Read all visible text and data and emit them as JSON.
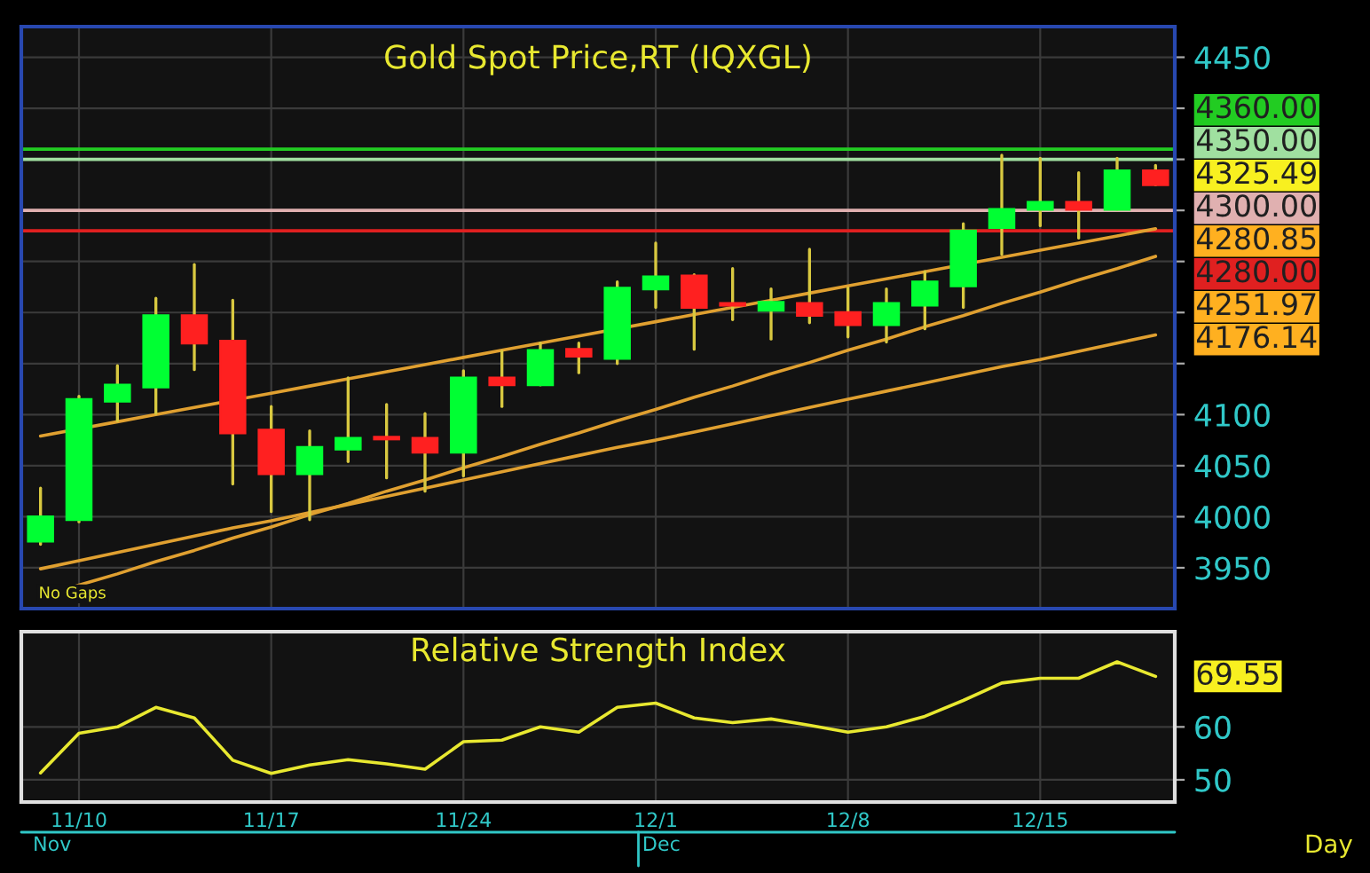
{
  "chart_data": [
    {
      "type": "candlestick",
      "title": "Gold Spot Price,RT (IQXGL)",
      "categories": [
        null,
        null,
        null,
        null,
        null,
        null,
        null,
        null,
        null,
        null,
        null,
        null,
        null,
        null,
        null,
        null,
        null,
        null,
        null,
        null,
        null,
        null,
        null,
        null,
        null,
        null,
        null,
        null,
        null,
        null
      ],
      "ohlc": [
        [
          3976,
          4028,
          3973,
          4000
        ],
        [
          3997,
          4118,
          3995,
          4115
        ],
        [
          4113,
          4148,
          4094,
          4129
        ],
        [
          4127,
          4214,
          4101,
          4197
        ],
        [
          4197,
          4247,
          4144,
          4170
        ],
        [
          4172,
          4212,
          4032,
          4082
        ],
        [
          4085,
          4108,
          4005,
          4042
        ],
        [
          4042,
          4084,
          3997,
          4068
        ],
        [
          4066,
          4136,
          4054,
          4077
        ],
        [
          4078,
          4110,
          4038,
          4076
        ],
        [
          4077,
          4101,
          4025,
          4063
        ],
        [
          4063,
          4143,
          4040,
          4136
        ],
        [
          4136,
          4162,
          4108,
          4129
        ],
        [
          4129,
          4170,
          4129,
          4163
        ],
        [
          4164,
          4170,
          4141,
          4157
        ],
        [
          4155,
          4230,
          4150,
          4224
        ],
        [
          4223,
          4268,
          4205,
          4235
        ],
        [
          4236,
          4237,
          4164,
          4205
        ],
        [
          4209,
          4243,
          4193,
          4207
        ],
        [
          4202,
          4223,
          4174,
          4210
        ],
        [
          4209,
          4262,
          4190,
          4197
        ],
        [
          4200,
          4224,
          4176,
          4188
        ],
        [
          4188,
          4223,
          4171,
          4209
        ],
        [
          4207,
          4240,
          4184,
          4230
        ],
        [
          4226,
          4287,
          4205,
          4280
        ],
        [
          4283,
          4354,
          4257,
          4301
        ],
        [
          4301,
          4351,
          4285,
          4308
        ],
        [
          4308,
          4337,
          4273,
          4301
        ],
        [
          4301,
          4351,
          4301,
          4339
        ],
        [
          4339,
          4344,
          4325,
          4325
        ]
      ],
      "colors": [
        "#00ff33",
        "#00ff33",
        "#00ff33",
        "#00ff33",
        "#ff2020",
        "#ff2020",
        "#ff2020",
        "#00ff33",
        "#00ff33",
        "#ff2020",
        "#ff2020",
        "#00ff33",
        "#ff2020",
        "#00ff33",
        "#ff2020",
        "#00ff33",
        "#00ff33",
        "#ff2020",
        "#ff2020",
        "#00ff33",
        "#ff2020",
        "#ff2020",
        "#00ff33",
        "#00ff33",
        "#00ff33",
        "#00ff33",
        "#00ff33",
        "#ff2020",
        "#00ff33",
        "#ff2020"
      ],
      "series": [
        {
          "type": "line",
          "color": "#e0a030",
          "values": [
            4079,
            null,
            4093,
            4100,
            4107,
            null,
            4121,
            4128,
            4135,
            4142,
            4149,
            4156,
            4163,
            4170,
            4177,
            null,
            4191,
            4198,
            4205,
            4212,
            4219,
            4226,
            4233,
            4240,
            null,
            4254,
            4261,
            4268,
            4275,
            4282
          ]
        },
        {
          "type": "line",
          "color": "#e0a030",
          "values": [
            3921,
            3933,
            3944,
            3956,
            3967,
            3979,
            3990,
            4002,
            4013,
            4025,
            4036,
            4048,
            4059,
            4071,
            4082,
            4094,
            4105,
            4117,
            4128,
            4140,
            4151,
            4163,
            4174,
            4186,
            4197,
            4209,
            4220,
            4232,
            4243,
            4255
          ]
        },
        {
          "type": "line",
          "color": "#e0a030",
          "values": [
            3949,
            3957,
            3965,
            3973,
            3981,
            3989,
            3996,
            4004,
            4012,
            4020,
            4028,
            4036,
            4044,
            4052,
            4060,
            4068,
            4075,
            4083,
            4091,
            4099,
            4107,
            4115,
            4123,
            4131,
            4139,
            4147,
            4154,
            4162,
            4170,
            4178
          ]
        }
      ],
      "ref_lines": [
        {
          "axis": "y",
          "value": 4360,
          "label": "4360.00",
          "color": "#22cc22"
        },
        {
          "axis": "y",
          "value": 4350,
          "label": "4350.00",
          "color": "#a0e0a0"
        },
        {
          "axis": "y",
          "value": 4300,
          "label": "4300.00",
          "color": "#e0b0b0"
        },
        {
          "axis": "y",
          "value": 4280,
          "label": "4280.00",
          "color": "#e02020"
        }
      ],
      "annotations": [
        "4325.49",
        "4280.85",
        "4251.97",
        "4176.14",
        "No Gaps"
      ],
      "ylim": [
        3910,
        4480
      ],
      "yticks": [
        3950,
        4000,
        4050,
        4100,
        {
          "value": 4150,
          "label": null
        },
        {
          "value": 4200,
          "label": null
        },
        {
          "value": 4250,
          "label": null
        },
        {
          "value": 4300,
          "label": null
        },
        {
          "value": 4350,
          "label": null
        },
        {
          "value": 4400,
          "label": null
        },
        4450
      ],
      "tick_labels": "y",
      "grid": true,
      "legend": "right"
    },
    {
      "type": "line",
      "title": "Relative Strength Index",
      "categories": [
        null,
        "11/10",
        null,
        null,
        null,
        null,
        "11/17",
        null,
        null,
        null,
        null,
        "11/24",
        null,
        null,
        null,
        null,
        "12/1",
        null,
        null,
        null,
        null,
        "12/8",
        null,
        null,
        null,
        null,
        "12/15",
        null,
        null,
        null
      ],
      "series": [
        {
          "color": "#e8e830",
          "values": [
            51.3,
            58.8,
            60.0,
            63.7,
            61.7,
            53.7,
            51.2,
            52.8,
            53.8,
            53.0,
            52.0,
            57.2,
            57.5,
            60.0,
            59.0,
            63.7,
            64.5,
            61.7,
            60.8,
            61.5,
            60.3,
            59.0,
            60.0,
            62.0,
            65.0,
            68.3,
            69.2,
            69.2,
            72.3,
            69.55
          ]
        }
      ],
      "annotations": [
        "69.55",
        "Dec",
        "Nov",
        "Day"
      ],
      "ylim": [
        45.8,
        78
      ],
      "yticks": [
        50,
        60
      ],
      "grid": true
    }
  ]
}
